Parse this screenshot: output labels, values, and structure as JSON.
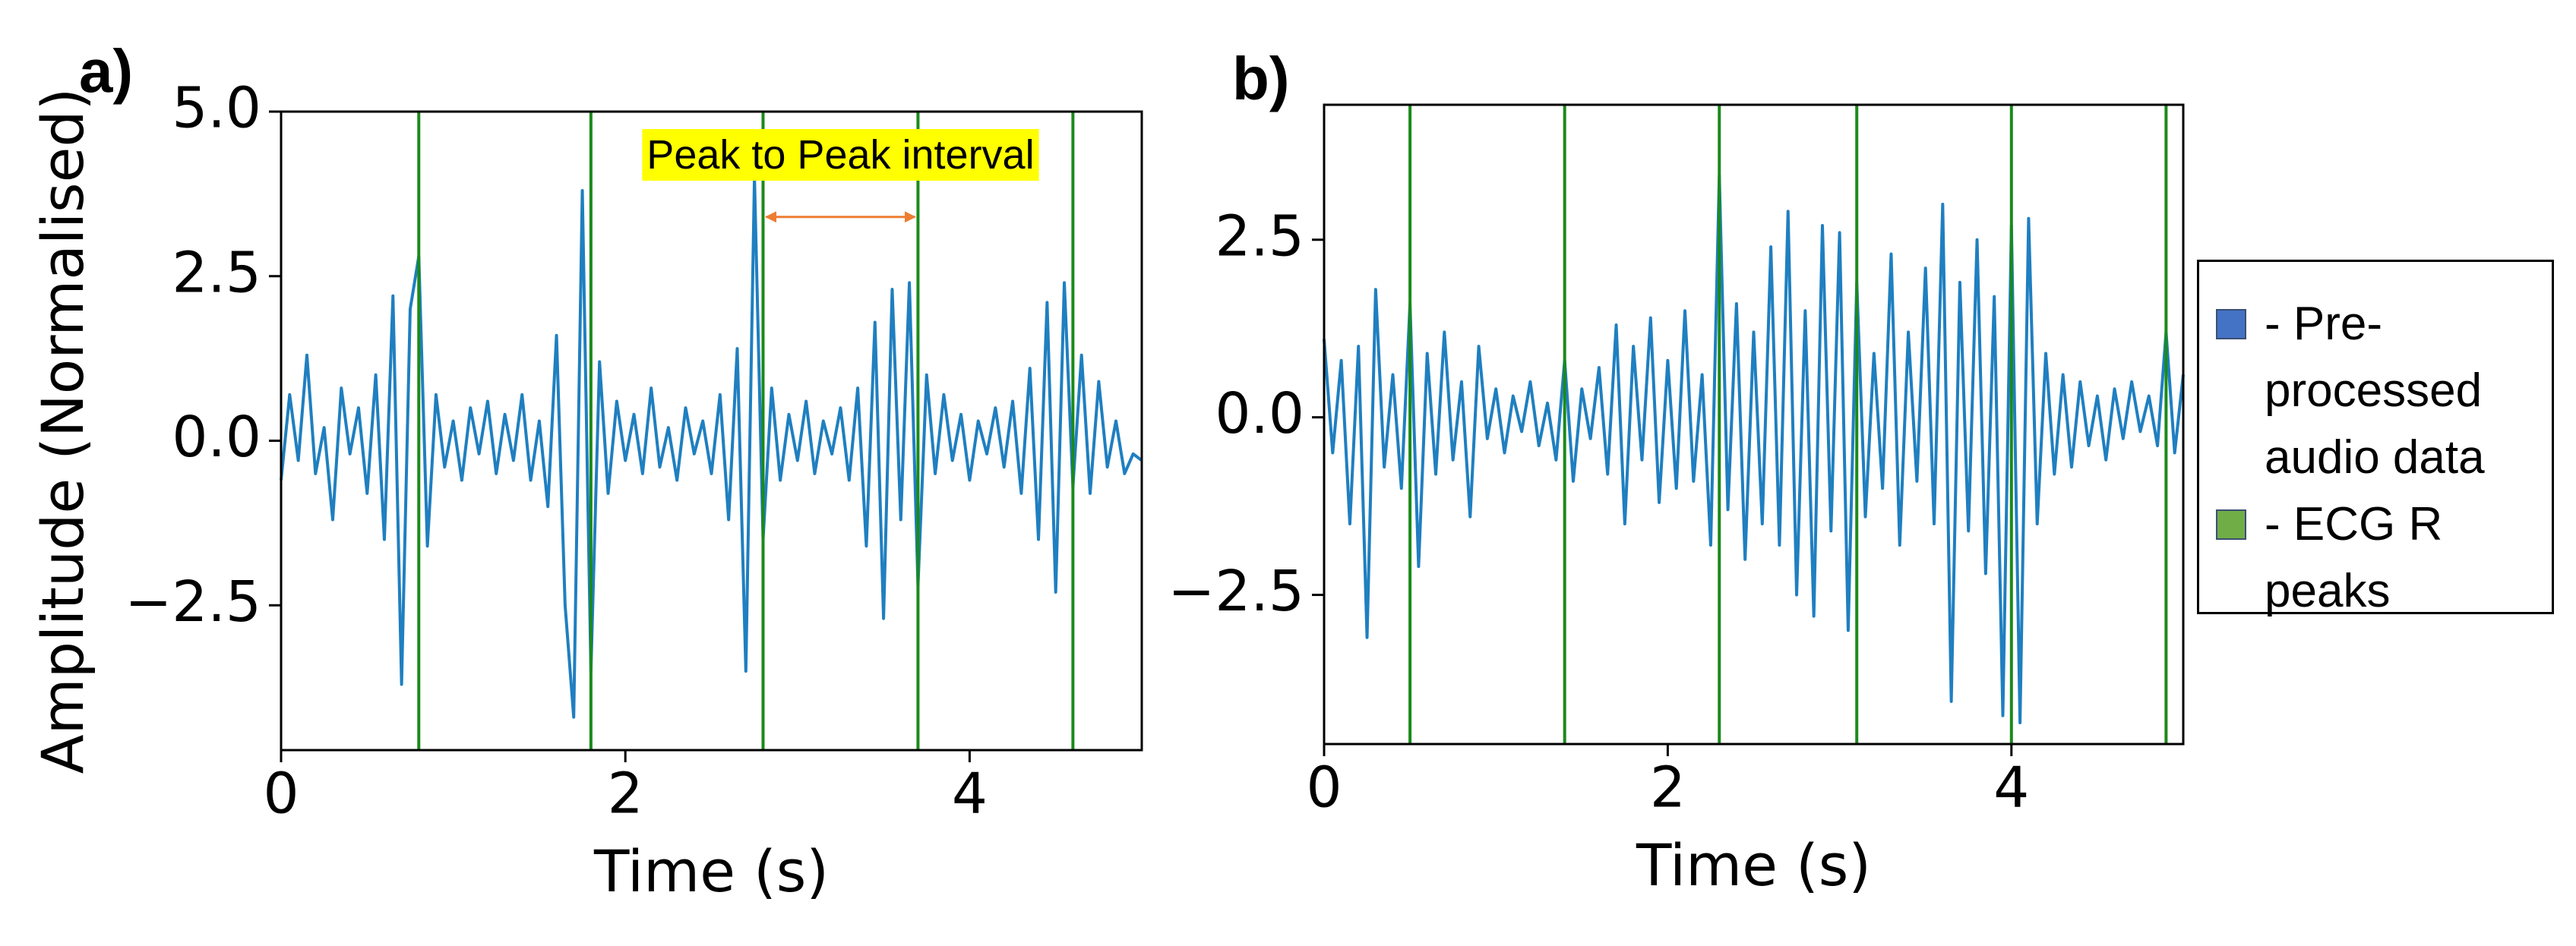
{
  "chart_data": [
    {
      "type": "line",
      "panel": "a)",
      "xlabel": "Time (s)",
      "ylabel": "Amplitude (Normalised)",
      "xlim": [
        0,
        5
      ],
      "ylim": [
        -4.7,
        5.0
      ],
      "xticks": [
        0,
        2,
        4
      ],
      "yticks": [
        {
          "value": -2.5,
          "label": "−2.5"
        },
        {
          "value": 0,
          "label": "0.0"
        },
        2.5,
        {
          "value": 5,
          "label": "5.0"
        }
      ],
      "x": [
        0,
        0.05,
        0.1,
        0.15,
        0.2,
        0.25,
        0.3,
        0.35,
        0.4,
        0.45,
        0.5,
        0.55,
        0.6,
        0.65,
        0.7,
        0.75,
        0.8,
        0.85,
        0.9,
        0.95,
        1.0,
        1.05,
        1.1,
        1.15,
        1.2,
        1.25,
        1.3,
        1.35,
        1.4,
        1.45,
        1.5,
        1.55,
        1.6,
        1.65,
        1.7,
        1.75,
        1.8,
        1.85,
        1.9,
        1.95,
        2.0,
        2.05,
        2.1,
        2.15,
        2.2,
        2.25,
        2.3,
        2.35,
        2.4,
        2.45,
        2.5,
        2.55,
        2.6,
        2.65,
        2.7,
        2.75,
        2.8,
        2.85,
        2.9,
        2.95,
        3.0,
        3.05,
        3.1,
        3.15,
        3.2,
        3.25,
        3.3,
        3.35,
        3.4,
        3.45,
        3.5,
        3.55,
        3.6,
        3.65,
        3.7,
        3.75,
        3.8,
        3.85,
        3.9,
        3.95,
        4.0,
        4.05,
        4.1,
        4.15,
        4.2,
        4.25,
        4.3,
        4.35,
        4.4,
        4.45,
        4.5,
        4.55,
        4.6,
        4.65,
        4.7,
        4.75,
        4.8,
        4.85,
        4.9,
        4.95,
        5.0
      ],
      "series": [
        {
          "color": "#1f7fc0",
          "values": [
            -0.6,
            0.7,
            -0.3,
            1.3,
            -0.5,
            0.2,
            -1.2,
            0.8,
            -0.2,
            0.5,
            -0.8,
            1.0,
            -1.5,
            2.2,
            -3.7,
            2.0,
            2.8,
            -1.6,
            0.7,
            -0.4,
            0.3,
            -0.6,
            0.5,
            -0.2,
            0.6,
            -0.5,
            0.4,
            -0.3,
            0.7,
            -0.6,
            0.3,
            -1.0,
            1.6,
            -2.5,
            -4.2,
            3.8,
            -3.5,
            1.2,
            -0.8,
            0.6,
            -0.3,
            0.4,
            -0.5,
            0.8,
            -0.4,
            0.2,
            -0.6,
            0.5,
            -0.2,
            0.3,
            -0.5,
            0.7,
            -1.2,
            1.4,
            -3.5,
            4.0,
            -1.5,
            0.8,
            -0.6,
            0.4,
            -0.3,
            0.6,
            -0.5,
            0.3,
            -0.2,
            0.5,
            -0.6,
            0.8,
            -1.6,
            1.8,
            -2.7,
            2.3,
            -1.2,
            2.4,
            -2.2,
            1.0,
            -0.5,
            0.7,
            -0.3,
            0.4,
            -0.6,
            0.3,
            -0.2,
            0.5,
            -0.4,
            0.6,
            -0.8,
            1.1,
            -1.5,
            2.1,
            -2.3,
            2.4,
            -0.7,
            1.3,
            -0.8,
            0.9,
            -0.4,
            0.3,
            -0.5,
            -0.2,
            -0.3
          ]
        }
      ],
      "peaks": [
        0.8,
        1.8,
        2.8,
        3.7,
        4.6
      ],
      "peak_color": "#1a8a1a",
      "annotation": {
        "text": "Peak to Peak interval",
        "x": [
          2.8,
          3.7
        ],
        "y": 3.4,
        "color": "#ed7d31",
        "background": "#ffff00"
      }
    },
    {
      "type": "line",
      "panel": "b)",
      "xlabel": "Time (s)",
      "xlim": [
        0,
        5
      ],
      "ylim": [
        -4.6,
        4.4
      ],
      "xticks": [
        0,
        2,
        4
      ],
      "yticks": [
        {
          "value": -2.5,
          "label": "−2.5"
        },
        {
          "value": 0,
          "label": "0.0"
        },
        2.5
      ],
      "x": [
        0,
        0.05,
        0.1,
        0.15,
        0.2,
        0.25,
        0.3,
        0.35,
        0.4,
        0.45,
        0.5,
        0.55,
        0.6,
        0.65,
        0.7,
        0.75,
        0.8,
        0.85,
        0.9,
        0.95,
        1.0,
        1.05,
        1.1,
        1.15,
        1.2,
        1.25,
        1.3,
        1.35,
        1.4,
        1.45,
        1.5,
        1.55,
        1.6,
        1.65,
        1.7,
        1.75,
        1.8,
        1.85,
        1.9,
        1.95,
        2.0,
        2.05,
        2.1,
        2.15,
        2.2,
        2.25,
        2.3,
        2.35,
        2.4,
        2.45,
        2.5,
        2.55,
        2.6,
        2.65,
        2.7,
        2.75,
        2.8,
        2.85,
        2.9,
        2.95,
        3.0,
        3.05,
        3.1,
        3.15,
        3.2,
        3.25,
        3.3,
        3.35,
        3.4,
        3.45,
        3.5,
        3.55,
        3.6,
        3.65,
        3.7,
        3.75,
        3.8,
        3.85,
        3.9,
        3.95,
        4.0,
        4.05,
        4.1,
        4.15,
        4.2,
        4.25,
        4.3,
        4.35,
        4.4,
        4.45,
        4.5,
        4.55,
        4.6,
        4.65,
        4.7,
        4.75,
        4.8,
        4.85,
        4.9,
        4.95,
        5.0
      ],
      "series": [
        {
          "color": "#1f7fc0",
          "values": [
            1.1,
            -0.5,
            0.8,
            -1.5,
            1.0,
            -3.1,
            1.8,
            -0.7,
            0.6,
            -1.0,
            1.6,
            -2.1,
            0.9,
            -0.8,
            1.2,
            -0.6,
            0.5,
            -1.4,
            1.0,
            -0.3,
            0.4,
            -0.5,
            0.3,
            -0.2,
            0.5,
            -0.4,
            0.2,
            -0.6,
            0.8,
            -0.9,
            0.4,
            -0.3,
            0.7,
            -0.8,
            1.3,
            -1.5,
            1.0,
            -0.6,
            1.4,
            -1.2,
            0.8,
            -1.0,
            1.5,
            -0.9,
            0.6,
            -1.8,
            3.4,
            -1.3,
            1.6,
            -2.0,
            1.2,
            -1.5,
            2.4,
            -1.8,
            2.9,
            -2.5,
            1.5,
            -2.8,
            2.7,
            -1.6,
            2.6,
            -3.0,
            1.9,
            -1.4,
            0.9,
            -1.0,
            2.3,
            -1.8,
            1.2,
            -0.9,
            2.1,
            -1.5,
            3.0,
            -4.0,
            1.9,
            -1.6,
            2.5,
            -2.2,
            1.7,
            -4.2,
            2.7,
            -4.3,
            2.8,
            -1.5,
            0.9,
            -0.8,
            0.6,
            -0.7,
            0.5,
            -0.4,
            0.3,
            -0.6,
            0.4,
            -0.3,
            0.5,
            -0.2,
            0.3,
            -0.4,
            1.2,
            -0.5,
            0.6
          ]
        }
      ],
      "peaks": [
        0.5,
        1.4,
        2.3,
        3.1,
        4.0,
        4.9
      ],
      "peak_color": "#1a8a1a"
    }
  ],
  "legend": {
    "entries": [
      {
        "label": "- Pre-processed audio data",
        "color": "#4472c4"
      },
      {
        "label": "- ECG R peaks",
        "color": "#70ad47"
      }
    ]
  }
}
